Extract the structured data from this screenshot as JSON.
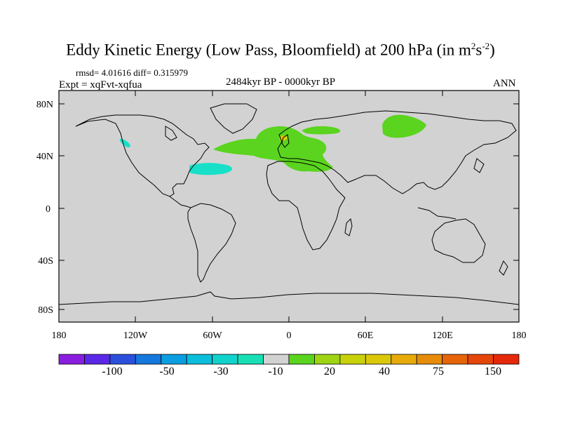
{
  "title": {
    "main": "Eddy Kinetic Energy (Low Pass, Bloomfield) at 200 hPa (in m",
    "sup1": "2",
    "mid": "s",
    "sup2": "-2",
    "end": ")"
  },
  "stats": "rmsd= 4.01616 diff= 0.315979",
  "experiment": "Expt = xqFvt-xqfua",
  "period": "2484kyr BP - 0000kyr BP",
  "season": "ANN",
  "axes": {
    "lat_labels": [
      "80N",
      "40N",
      "0",
      "40S",
      "80S"
    ],
    "lon_labels": [
      "180",
      "120W",
      "60W",
      "0",
      "60E",
      "120E",
      "180"
    ]
  },
  "colorbar": {
    "colors": [
      "#8a1ee0",
      "#5a28e6",
      "#2a50dc",
      "#1478dc",
      "#0a9ee0",
      "#0abedc",
      "#12d2cc",
      "#18e0b4",
      "#d2d2d2",
      "#5ad41e",
      "#9ed414",
      "#c8d20a",
      "#dcc80a",
      "#e6aa0a",
      "#e68c0a",
      "#e6640a",
      "#e6460a",
      "#e6280a"
    ],
    "labels": [
      "-100",
      "-50",
      "-30",
      "-10",
      "20",
      "40",
      "75",
      "150"
    ]
  },
  "colors": {
    "land_sea": "#d2d2d2",
    "positive": "#5ad41e",
    "negative": "#18e0c8",
    "warm": "#dcc80a"
  }
}
